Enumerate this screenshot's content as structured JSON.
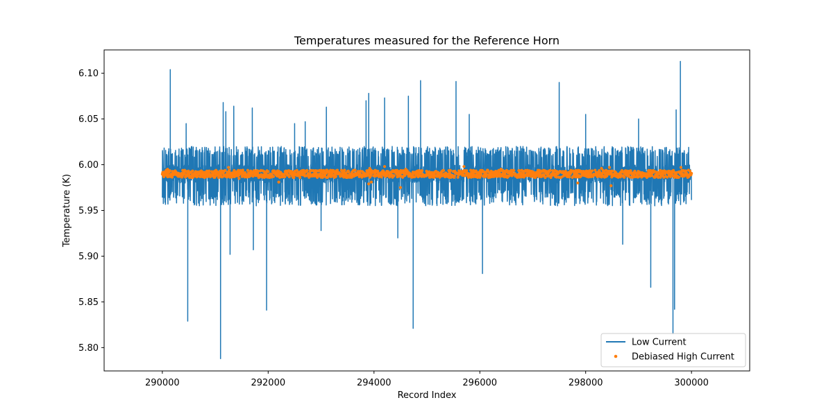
{
  "chart_data": {
    "type": "line",
    "title": "Temperatures measured for the Reference Horn",
    "xlabel": "Record Index",
    "ylabel": "Temperature (K)",
    "xlim": [
      288900,
      301100
    ],
    "ylim": [
      5.7745,
      6.1255
    ],
    "x_ticks": [
      290000,
      292000,
      294000,
      296000,
      298000,
      300000
    ],
    "x_tick_labels": [
      "290000",
      "292000",
      "294000",
      "296000",
      "298000",
      "300000"
    ],
    "y_ticks": [
      5.8,
      5.85,
      5.9,
      5.95,
      6.0,
      6.05,
      6.1
    ],
    "y_tick_labels": [
      "5.80",
      "5.85",
      "5.90",
      "5.95",
      "6.00",
      "6.05",
      "6.10"
    ],
    "grid": false,
    "legend_position": "bottom-right",
    "colors": {
      "low_current": "#1f77b4",
      "debiased_high_current": "#ff7f0e"
    },
    "series": [
      {
        "name": "Low Current",
        "kind": "line",
        "x_range": [
          290000,
          300000
        ],
        "baseline": 5.99,
        "band": [
          5.955,
          6.02
        ],
        "spikes": [
          {
            "x": 290150,
            "y": 6.104
          },
          {
            "x": 290450,
            "y": 6.045
          },
          {
            "x": 290480,
            "y": 5.829
          },
          {
            "x": 291100,
            "y": 5.788
          },
          {
            "x": 291150,
            "y": 6.068
          },
          {
            "x": 291200,
            "y": 6.058
          },
          {
            "x": 291280,
            "y": 5.902
          },
          {
            "x": 291350,
            "y": 6.064
          },
          {
            "x": 291700,
            "y": 6.062
          },
          {
            "x": 291720,
            "y": 5.907
          },
          {
            "x": 291970,
            "y": 5.841
          },
          {
            "x": 292200,
            "y": 5.965
          },
          {
            "x": 292500,
            "y": 6.045
          },
          {
            "x": 292700,
            "y": 6.047
          },
          {
            "x": 293000,
            "y": 5.928
          },
          {
            "x": 293100,
            "y": 6.063
          },
          {
            "x": 293850,
            "y": 6.07
          },
          {
            "x": 293900,
            "y": 6.078
          },
          {
            "x": 294200,
            "y": 6.073
          },
          {
            "x": 294450,
            "y": 5.92
          },
          {
            "x": 294650,
            "y": 6.075
          },
          {
            "x": 294740,
            "y": 5.821
          },
          {
            "x": 294880,
            "y": 6.092
          },
          {
            "x": 295550,
            "y": 6.091
          },
          {
            "x": 295800,
            "y": 6.055
          },
          {
            "x": 296050,
            "y": 5.881
          },
          {
            "x": 297500,
            "y": 6.09
          },
          {
            "x": 298000,
            "y": 6.055
          },
          {
            "x": 299000,
            "y": 6.05
          },
          {
            "x": 298700,
            "y": 5.913
          },
          {
            "x": 299230,
            "y": 5.866
          },
          {
            "x": 299650,
            "y": 5.815
          },
          {
            "x": 299680,
            "y": 5.842
          },
          {
            "x": 299710,
            "y": 6.06
          },
          {
            "x": 299790,
            "y": 6.113
          }
        ]
      },
      {
        "name": "Debiased High Current",
        "kind": "scatter",
        "x_range": [
          290000,
          300000
        ],
        "baseline": 5.99,
        "band": [
          5.986,
          5.994
        ],
        "outliers": [
          {
            "x": 290100,
            "y": 5.995
          },
          {
            "x": 290800,
            "y": 5.986
          },
          {
            "x": 291250,
            "y": 5.997
          },
          {
            "x": 291450,
            "y": 5.985
          },
          {
            "x": 292200,
            "y": 5.981
          },
          {
            "x": 293100,
            "y": 5.994
          },
          {
            "x": 293900,
            "y": 5.979
          },
          {
            "x": 293950,
            "y": 5.981
          },
          {
            "x": 293920,
            "y": 5.996
          },
          {
            "x": 294200,
            "y": 5.998
          },
          {
            "x": 294500,
            "y": 5.975
          },
          {
            "x": 294600,
            "y": 5.995
          },
          {
            "x": 295700,
            "y": 5.998
          },
          {
            "x": 296400,
            "y": 5.995
          },
          {
            "x": 297050,
            "y": 5.986
          },
          {
            "x": 297850,
            "y": 5.98
          },
          {
            "x": 298300,
            "y": 5.996
          },
          {
            "x": 298450,
            "y": 5.997
          },
          {
            "x": 298480,
            "y": 5.977
          },
          {
            "x": 299800,
            "y": 5.997
          }
        ]
      }
    ]
  }
}
